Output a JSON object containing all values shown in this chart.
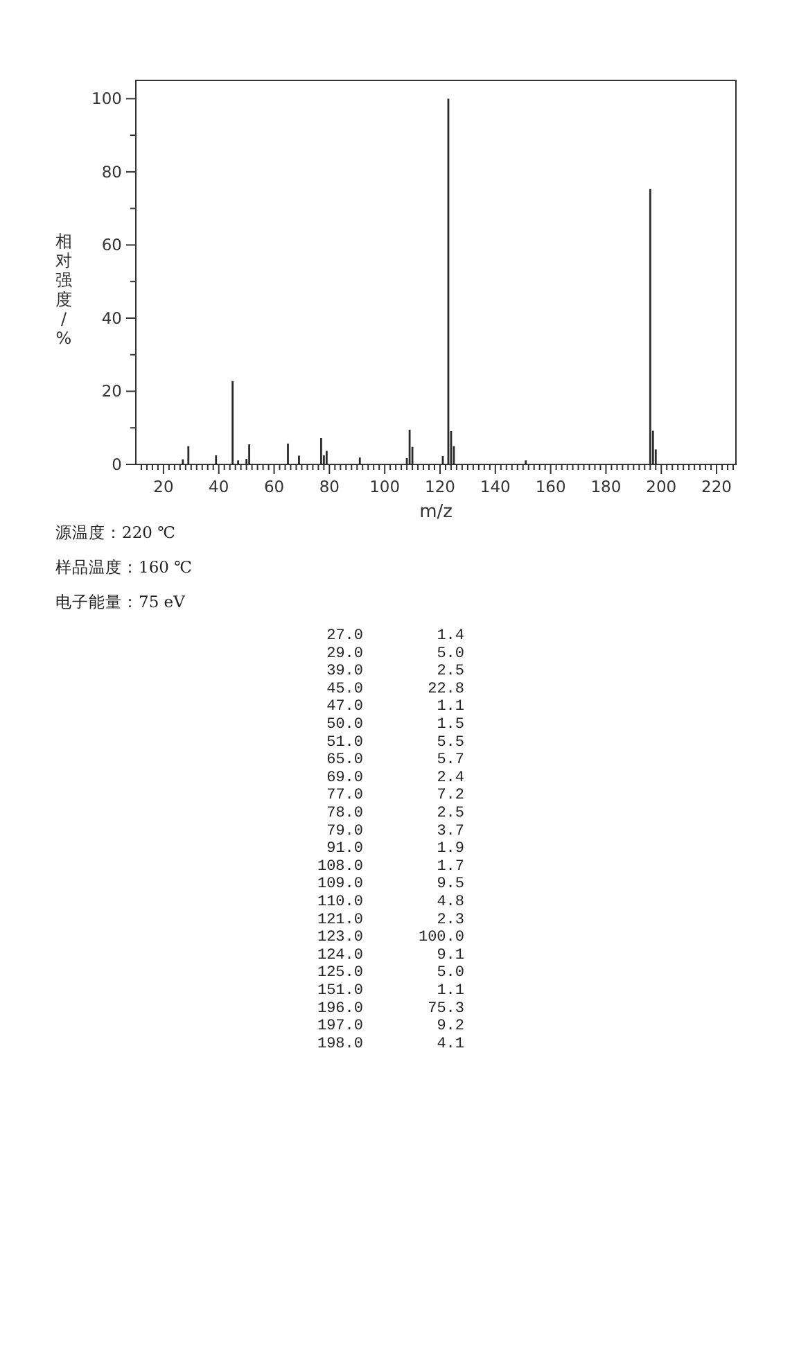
{
  "chart_data": [
    {
      "type": "bar",
      "xlabel": "m/z",
      "ylabel": "相对强度/%",
      "color": "#2b2b2b",
      "x": [
        27,
        29,
        39,
        45,
        47,
        50,
        51,
        65,
        69,
        77,
        78,
        79,
        91,
        108,
        109,
        110,
        121,
        123,
        124,
        125,
        151,
        196,
        197,
        198
      ],
      "values": [
        1.4,
        5.0,
        2.5,
        22.8,
        1.1,
        1.5,
        5.5,
        5.7,
        2.4,
        7.2,
        2.5,
        3.7,
        1.9,
        1.7,
        9.5,
        4.8,
        2.3,
        100.0,
        9.1,
        5.0,
        1.1,
        75.3,
        9.2,
        4.1
      ],
      "xlim": [
        10,
        227
      ],
      "ylim": [
        0,
        105
      ],
      "xticks": [
        {
          "value": 12,
          "label": null
        },
        {
          "value": 14,
          "label": null
        },
        {
          "value": 16,
          "label": null
        },
        {
          "value": 18,
          "label": null
        },
        20,
        {
          "value": 22,
          "label": null
        },
        {
          "value": 24,
          "label": null
        },
        {
          "value": 26,
          "label": null
        },
        {
          "value": 28,
          "label": null
        },
        {
          "value": 30,
          "label": null
        },
        {
          "value": 32,
          "label": null
        },
        {
          "value": 34,
          "label": null
        },
        {
          "value": 36,
          "label": null
        },
        {
          "value": 38,
          "label": null
        },
        40,
        {
          "value": 42,
          "label": null
        },
        {
          "value": 44,
          "label": null
        },
        {
          "value": 46,
          "label": null
        },
        {
          "value": 48,
          "label": null
        },
        {
          "value": 50,
          "label": null
        },
        {
          "value": 52,
          "label": null
        },
        {
          "value": 54,
          "label": null
        },
        {
          "value": 56,
          "label": null
        },
        {
          "value": 58,
          "label": null
        },
        60,
        {
          "value": 62,
          "label": null
        },
        {
          "value": 64,
          "label": null
        },
        {
          "value": 66,
          "label": null
        },
        {
          "value": 68,
          "label": null
        },
        {
          "value": 70,
          "label": null
        },
        {
          "value": 72,
          "label": null
        },
        {
          "value": 74,
          "label": null
        },
        {
          "value": 76,
          "label": null
        },
        {
          "value": 78,
          "label": null
        },
        80,
        {
          "value": 82,
          "label": null
        },
        {
          "value": 84,
          "label": null
        },
        {
          "value": 86,
          "label": null
        },
        {
          "value": 88,
          "label": null
        },
        {
          "value": 90,
          "label": null
        },
        {
          "value": 92,
          "label": null
        },
        {
          "value": 94,
          "label": null
        },
        {
          "value": 96,
          "label": null
        },
        {
          "value": 98,
          "label": null
        },
        100,
        {
          "value": 102,
          "label": null
        },
        {
          "value": 104,
          "label": null
        },
        {
          "value": 106,
          "label": null
        },
        {
          "value": 108,
          "label": null
        },
        {
          "value": 110,
          "label": null
        },
        {
          "value": 112,
          "label": null
        },
        {
          "value": 114,
          "label": null
        },
        {
          "value": 116,
          "label": null
        },
        {
          "value": 118,
          "label": null
        },
        120,
        {
          "value": 122,
          "label": null
        },
        {
          "value": 124,
          "label": null
        },
        {
          "value": 126,
          "label": null
        },
        {
          "value": 128,
          "label": null
        },
        {
          "value": 130,
          "label": null
        },
        {
          "value": 132,
          "label": null
        },
        {
          "value": 134,
          "label": null
        },
        {
          "value": 136,
          "label": null
        },
        {
          "value": 138,
          "label": null
        },
        140,
        {
          "value": 142,
          "label": null
        },
        {
          "value": 144,
          "label": null
        },
        {
          "value": 146,
          "label": null
        },
        {
          "value": 148,
          "label": null
        },
        {
          "value": 150,
          "label": null
        },
        {
          "value": 152,
          "label": null
        },
        {
          "value": 154,
          "label": null
        },
        {
          "value": 156,
          "label": null
        },
        {
          "value": 158,
          "label": null
        },
        160,
        {
          "value": 162,
          "label": null
        },
        {
          "value": 164,
          "label": null
        },
        {
          "value": 166,
          "label": null
        },
        {
          "value": 168,
          "label": null
        },
        {
          "value": 170,
          "label": null
        },
        {
          "value": 172,
          "label": null
        },
        {
          "value": 174,
          "label": null
        },
        {
          "value": 176,
          "label": null
        },
        {
          "value": 178,
          "label": null
        },
        180,
        {
          "value": 182,
          "label": null
        },
        {
          "value": 184,
          "label": null
        },
        {
          "value": 186,
          "label": null
        },
        {
          "value": 188,
          "label": null
        },
        {
          "value": 190,
          "label": null
        },
        {
          "value": 192,
          "label": null
        },
        {
          "value": 194,
          "label": null
        },
        {
          "value": 196,
          "label": null
        },
        {
          "value": 198,
          "label": null
        },
        200,
        {
          "value": 202,
          "label": null
        },
        {
          "value": 204,
          "label": null
        },
        {
          "value": 206,
          "label": null
        },
        {
          "value": 208,
          "label": null
        },
        {
          "value": 210,
          "label": null
        },
        {
          "value": 212,
          "label": null
        },
        {
          "value": 214,
          "label": null
        },
        {
          "value": 216,
          "label": null
        },
        {
          "value": 218,
          "label": null
        },
        220,
        {
          "value": 222,
          "label": null
        },
        {
          "value": 224,
          "label": null
        },
        {
          "value": 226,
          "label": null
        }
      ],
      "yticks": [
        0,
        {
          "value": 10,
          "label": null
        },
        20,
        {
          "value": 30,
          "label": null
        },
        40,
        {
          "value": 50,
          "label": null
        },
        60,
        {
          "value": 70,
          "label": null
        },
        80,
        {
          "value": 90,
          "label": null
        },
        100
      ],
      "annotations": [
        "源温度：220 ℃",
        "样品温度：160 ℃",
        "电子能量：75 eV"
      ]
    },
    {
      "type": "other",
      "categories": [
        "27.0",
        "29.0",
        "39.0",
        "45.0",
        "47.0",
        "50.0",
        "51.0",
        "65.0",
        "69.0",
        "77.0",
        "78.0",
        "79.0",
        "91.0",
        "108.0",
        "109.0",
        "110.0",
        "121.0",
        "123.0",
        "124.0",
        "125.0",
        "151.0",
        "196.0",
        "197.0",
        "198.0"
      ],
      "values": [
        1.4,
        5.0,
        2.5,
        22.8,
        1.1,
        1.5,
        5.5,
        5.7,
        2.4,
        7.2,
        2.5,
        3.7,
        1.9,
        1.7,
        9.5,
        4.8,
        2.3,
        100.0,
        9.1,
        5.0,
        1.1,
        75.3,
        9.2,
        4.1
      ],
      "value_labels": [
        "1.4",
        "5.0",
        "2.5",
        "22.8",
        "1.1",
        "1.5",
        "5.5",
        "5.7",
        "2.4",
        "7.2",
        "2.5",
        "3.7",
        "1.9",
        "1.7",
        "9.5",
        "4.8",
        "2.3",
        "100.0",
        "9.1",
        "5.0",
        "1.1",
        "75.3",
        "9.2",
        "4.1"
      ]
    }
  ]
}
